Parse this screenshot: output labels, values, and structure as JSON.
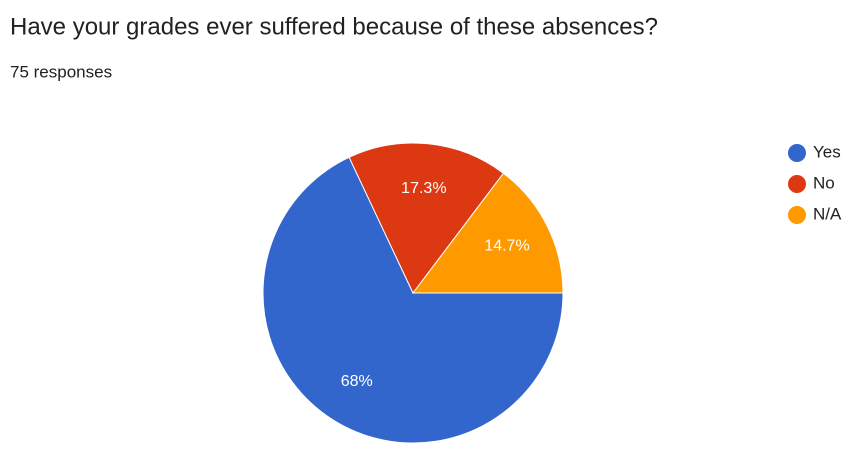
{
  "chart_data": {
    "type": "pie",
    "title": "Have your grades ever suffered because of these absences?",
    "subtitle": "75 responses",
    "categories": [
      "Yes",
      "No",
      "N/A"
    ],
    "values": [
      68,
      17.3,
      14.7
    ],
    "value_labels": [
      "68%",
      "17.3%",
      "14.7%"
    ],
    "colors": [
      "#3366cc",
      "#dc3912",
      "#ff9900"
    ],
    "legend": "right"
  }
}
